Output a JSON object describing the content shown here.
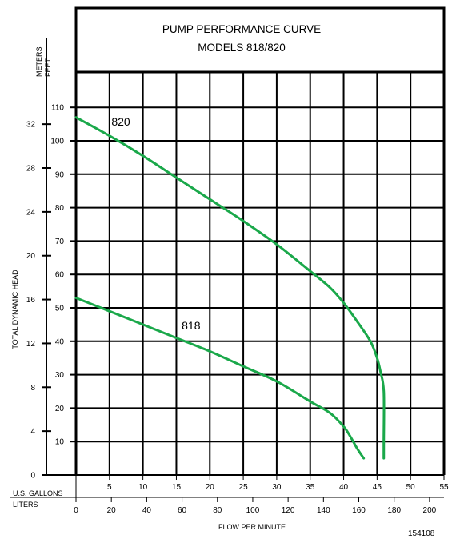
{
  "header": {
    "title_line1": "PUMP PERFORMANCE CURVE",
    "title_line2": "MODELS 818/820"
  },
  "labels": {
    "meters": "METERS",
    "feet": "FEET",
    "us_gallons": "U.S. GALLONS",
    "liters": "LITERS",
    "ylabel": "TOTAL DYNAMIC HEAD",
    "xlabel": "FLOW PER MINUTE",
    "code": "154108"
  },
  "colors": {
    "curve": "#1aa84a",
    "grid": "#000000"
  },
  "chart_data": {
    "type": "line",
    "title": "PUMP PERFORMANCE CURVE MODELS 818/820",
    "xlabel": "FLOW PER MINUTE",
    "ylabel": "TOTAL DYNAMIC HEAD",
    "x_units": [
      "U.S. GALLONS",
      "LITERS"
    ],
    "y_units": [
      "FEET",
      "METERS"
    ],
    "xlim": [
      0,
      55
    ],
    "ylim": [
      0,
      110
    ],
    "grid": true,
    "x_ticks_gallons": [
      5,
      10,
      15,
      20,
      25,
      30,
      35,
      40,
      45,
      50,
      55
    ],
    "x_ticks_liters": [
      0,
      20,
      40,
      60,
      80,
      100,
      120,
      140,
      160,
      180,
      200
    ],
    "y_ticks_feet": [
      10,
      20,
      30,
      40,
      50,
      60,
      70,
      80,
      90,
      100,
      110
    ],
    "y_ticks_meters": [
      0,
      4,
      8,
      12,
      16,
      20,
      24,
      28,
      32
    ],
    "series": [
      {
        "name": "820",
        "x": [
          0,
          5,
          10,
          15,
          20,
          25,
          30,
          35,
          38,
          40,
          42,
          44,
          45,
          45.5,
          46,
          46,
          46
        ],
        "y": [
          107,
          101.5,
          95.5,
          89,
          82.5,
          76,
          69,
          61,
          56,
          51.5,
          46,
          40,
          35,
          31,
          25,
          10,
          5
        ]
      },
      {
        "name": "818",
        "x": [
          0,
          5,
          10,
          15,
          20,
          25,
          30,
          35,
          38,
          40,
          41,
          42,
          43
        ],
        "y": [
          53,
          49,
          45,
          41,
          37,
          32.5,
          28,
          22,
          18.5,
          14.5,
          11.5,
          8,
          5
        ]
      }
    ]
  }
}
